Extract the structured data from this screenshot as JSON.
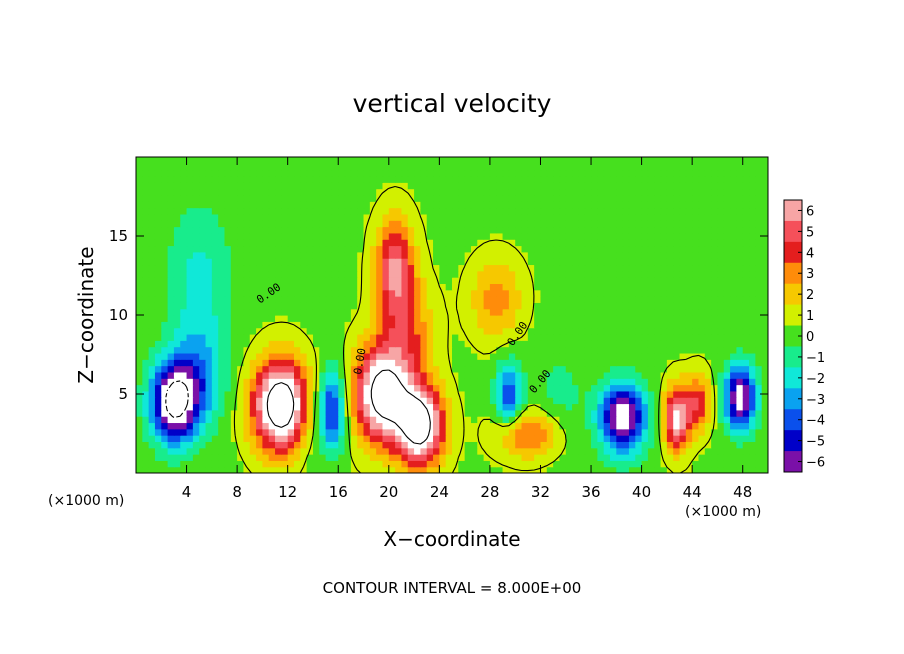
{
  "chart_data": {
    "type": "heatmap",
    "title": "vertical velocity",
    "xlabel": "X−coordinate",
    "ylabel": "Z−coordinate",
    "x_unit_left": "(×1000 m)",
    "x_unit_right": "(×1000 m)",
    "xlim": [
      0,
      50
    ],
    "ylim": [
      0,
      20
    ],
    "x_ticks": [
      4,
      8,
      12,
      16,
      20,
      24,
      28,
      32,
      36,
      40,
      44,
      48
    ],
    "y_ticks": [
      5,
      10,
      15
    ],
    "colorbar": {
      "min": -6,
      "max": 6,
      "ticks": [
        "6",
        "5",
        "4",
        "3",
        "2",
        "1",
        "0",
        "−1",
        "−2",
        "−3",
        "−4",
        "−5",
        "−6"
      ],
      "colors": [
        "#f7a5a5",
        "#f5505a",
        "#e41e1e",
        "#ff8c0a",
        "#f6c800",
        "#d2f000",
        "#46e01e",
        "#18ec8c",
        "#10e8d8",
        "#0aa2f0",
        "#0a50ec",
        "#0000c8",
        "#7a10a8"
      ]
    },
    "contour_interval": "CONTOUR INTERVAL = 8.000E+00",
    "contour_labels": [
      "0.00",
      "0.00",
      "0.00",
      "0.00"
    ],
    "features": [
      {
        "x": 3.0,
        "z": 4.5,
        "sx": 1.8,
        "sz": 2.5,
        "w": -9
      },
      {
        "x": 5.0,
        "z": 12,
        "sx": 2.5,
        "sz": 5,
        "w": -2.2
      },
      {
        "x": 5.0,
        "z": 6,
        "sx": 2.0,
        "sz": 3,
        "w": -3
      },
      {
        "x": 11.5,
        "z": 4.3,
        "sx": 2.2,
        "sz": 2.8,
        "w": 10
      },
      {
        "x": 15.5,
        "z": 4.0,
        "sx": 1.0,
        "sz": 2.5,
        "w": -6
      },
      {
        "x": 19.5,
        "z": 5,
        "sx": 2.2,
        "sz": 3,
        "w": 9
      },
      {
        "x": 22.5,
        "z": 3,
        "sx": 1.8,
        "sz": 2.5,
        "w": 9
      },
      {
        "x": 20.5,
        "z": 13,
        "sx": 1.5,
        "sz": 3,
        "w": 5.5
      },
      {
        "x": 21.5,
        "z": 9,
        "sx": 2.0,
        "sz": 3,
        "w": 3
      },
      {
        "x": 28.5,
        "z": 11,
        "sx": 2.0,
        "sz": 2.5,
        "w": 2.8
      },
      {
        "x": 29.5,
        "z": 5,
        "sx": 1.0,
        "sz": 2.0,
        "w": -5
      },
      {
        "x": 31,
        "z": 2.5,
        "sx": 2.5,
        "sz": 1.5,
        "w": 3.5
      },
      {
        "x": 38.5,
        "z": 3.5,
        "sx": 1.8,
        "sz": 2.2,
        "w": -8
      },
      {
        "x": 42.8,
        "z": 3.5,
        "sx": 1.0,
        "sz": 2.0,
        "w": 7
      },
      {
        "x": 44.5,
        "z": 4.5,
        "sx": 1.0,
        "sz": 1.8,
        "w": 4
      },
      {
        "x": 47.8,
        "z": 4.8,
        "sx": 1.2,
        "sz": 2.0,
        "w": -8
      },
      {
        "x": 13.5,
        "z": 3.5,
        "sx": 1.0,
        "sz": 3.0,
        "w": -1.5
      },
      {
        "x": 33.5,
        "z": 5,
        "sx": 2.0,
        "sz": 3.0,
        "w": -1.2
      }
    ]
  }
}
